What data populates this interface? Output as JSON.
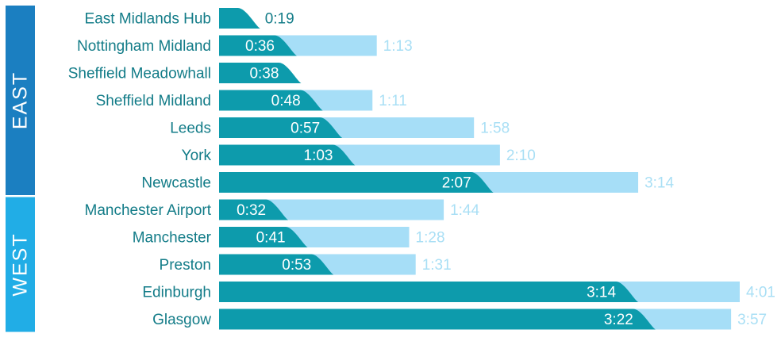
{
  "chart_data": {
    "type": "bar",
    "regions": [
      {
        "name": "EAST",
        "color": "#1b7fc1"
      },
      {
        "name": "WEST",
        "color": "#21ade6"
      }
    ],
    "colors": {
      "hs2": "#0d9bac",
      "current": "#a6def7",
      "label": "#137c88"
    },
    "x_unit": "minutes",
    "xlim": [
      0,
      241
    ],
    "rows": [
      {
        "region": "EAST",
        "station": "East Midlands Hub",
        "hs2": "0:19",
        "hs2_min": 19,
        "current": "",
        "current_min": null
      },
      {
        "region": "EAST",
        "station": "Nottingham Midland",
        "hs2": "0:36",
        "hs2_min": 36,
        "current": "1:13",
        "current_min": 73
      },
      {
        "region": "EAST",
        "station": "Sheffield Meadowhall",
        "hs2": "0:38",
        "hs2_min": 38,
        "current": "",
        "current_min": null
      },
      {
        "region": "EAST",
        "station": "Sheffield Midland",
        "hs2": "0:48",
        "hs2_min": 48,
        "current": "1:11",
        "current_min": 71
      },
      {
        "region": "EAST",
        "station": "Leeds",
        "hs2": "0:57",
        "hs2_min": 57,
        "current": "1:58",
        "current_min": 118
      },
      {
        "region": "EAST",
        "station": "York",
        "hs2": "1:03",
        "hs2_min": 63,
        "current": "2:10",
        "current_min": 130
      },
      {
        "region": "EAST",
        "station": "Newcastle",
        "hs2": "2:07",
        "hs2_min": 127,
        "current": "3:14",
        "current_min": 194
      },
      {
        "region": "WEST",
        "station": "Manchester Airport",
        "hs2": "0:32",
        "hs2_min": 32,
        "current": "1:44",
        "current_min": 104
      },
      {
        "region": "WEST",
        "station": "Manchester",
        "hs2": "0:41",
        "hs2_min": 41,
        "current": "1:28",
        "current_min": 88
      },
      {
        "region": "WEST",
        "station": "Preston",
        "hs2": "0:53",
        "hs2_min": 53,
        "current": "1:31",
        "current_min": 91
      },
      {
        "region": "WEST",
        "station": "Edinburgh",
        "hs2": "3:14",
        "hs2_min": 194,
        "current": "4:01",
        "current_min": 241
      },
      {
        "region": "WEST",
        "station": "Glasgow",
        "hs2": "3:22",
        "hs2_min": 202,
        "current": "3:57",
        "current_min": 237
      }
    ]
  }
}
